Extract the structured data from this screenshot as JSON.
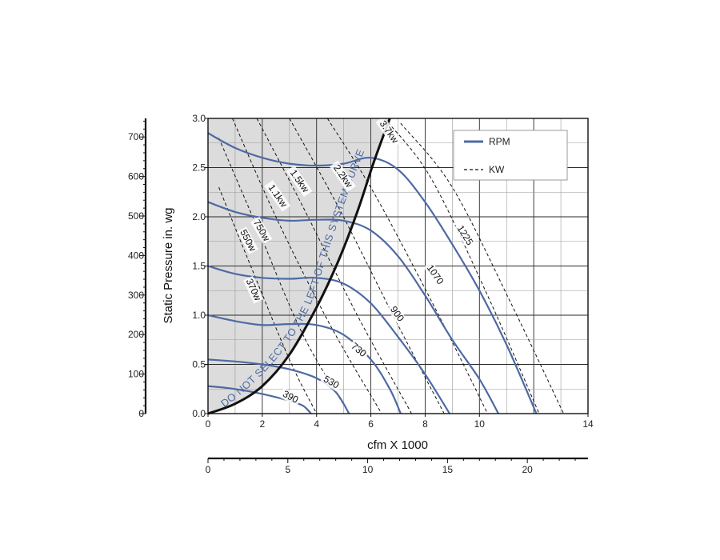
{
  "chart_data": {
    "type": "line",
    "xlabel": "cfm X 1000",
    "ylabel": "Static Pressure in. wg",
    "xlim": [
      0,
      14
    ],
    "ylim": [
      0,
      3.0
    ],
    "x_ticks": [
      "0",
      "2",
      "4",
      "6",
      "8",
      "10",
      "14"
    ],
    "x_tick_values": [
      0,
      2,
      4,
      6,
      8,
      10,
      14
    ],
    "y_ticks": [
      "0.0",
      "0.5",
      "1.0",
      "1.5",
      "2.0",
      "2.5",
      "3.0"
    ],
    "y_tick_values": [
      0,
      0.5,
      1.0,
      1.5,
      2.0,
      2.5,
      3.0
    ],
    "grid": true,
    "secondary_x_axis": {
      "ticks": [
        "0",
        "5",
        "10",
        "15",
        "20"
      ],
      "tick_values": [
        0,
        5,
        10,
        15,
        20
      ],
      "max": 23.8
    },
    "secondary_y_axis": {
      "ticks": [
        "0",
        "100",
        "200",
        "300",
        "400",
        "500",
        "600",
        "700"
      ],
      "tick_values": [
        0,
        100,
        200,
        300,
        400,
        500,
        600,
        700
      ],
      "max": 747
    },
    "legend": {
      "placement": "top-right",
      "entries": [
        {
          "label": "RPM",
          "style": "solid"
        },
        {
          "label": "KW",
          "style": "dashed"
        }
      ]
    },
    "colors": {
      "rpm": "#4e6aa3",
      "kw": "#111111",
      "shade": "#dcdcdc",
      "system_curve": "#111111"
    },
    "system_curve": {
      "label": "DO NOT SELECT TO THE LEFT OF THIS SYSTEM CURVE",
      "points": [
        [
          0,
          0
        ],
        [
          1,
          0.1
        ],
        [
          2,
          0.28
        ],
        [
          3,
          0.6
        ],
        [
          4,
          1.08
        ],
        [
          4.8,
          1.55
        ],
        [
          5.5,
          2.05
        ],
        [
          6.1,
          2.55
        ],
        [
          6.7,
          3.0
        ]
      ]
    },
    "rpm_series": [
      {
        "name": "390",
        "points": [
          [
            0,
            0.28
          ],
          [
            1,
            0.25
          ],
          [
            2,
            0.2
          ],
          [
            3,
            0.13
          ],
          [
            3.5,
            0.08
          ],
          [
            3.8,
            0.0
          ]
        ]
      },
      {
        "name": "530",
        "points": [
          [
            0,
            0.55
          ],
          [
            1,
            0.53
          ],
          [
            2,
            0.5
          ],
          [
            3,
            0.45
          ],
          [
            4,
            0.36
          ],
          [
            4.7,
            0.22
          ],
          [
            5.2,
            0.0
          ]
        ]
      },
      {
        "name": "730",
        "points": [
          [
            0,
            1.0
          ],
          [
            1,
            0.94
          ],
          [
            2,
            0.9
          ],
          [
            3,
            0.91
          ],
          [
            4,
            0.9
          ],
          [
            5,
            0.8
          ],
          [
            6,
            0.55
          ],
          [
            6.7,
            0.25
          ],
          [
            7.1,
            0.0
          ]
        ]
      },
      {
        "name": "900",
        "points": [
          [
            0,
            1.5
          ],
          [
            1,
            1.42
          ],
          [
            2,
            1.38
          ],
          [
            3,
            1.37
          ],
          [
            4,
            1.38
          ],
          [
            5,
            1.32
          ],
          [
            6,
            1.12
          ],
          [
            7,
            0.78
          ],
          [
            8,
            0.4
          ],
          [
            8.9,
            0.0
          ]
        ]
      },
      {
        "name": "1070",
        "points": [
          [
            0,
            2.15
          ],
          [
            1,
            2.05
          ],
          [
            2,
            1.99
          ],
          [
            3,
            1.96
          ],
          [
            4,
            1.97
          ],
          [
            5,
            1.96
          ],
          [
            6,
            1.86
          ],
          [
            7,
            1.6
          ],
          [
            8,
            1.2
          ],
          [
            9,
            0.75
          ],
          [
            10,
            0.35
          ],
          [
            10.7,
            0.0
          ]
        ]
      },
      {
        "name": "1225",
        "points": [
          [
            0,
            2.85
          ],
          [
            1,
            2.7
          ],
          [
            2,
            2.6
          ],
          [
            3,
            2.54
          ],
          [
            4,
            2.52
          ],
          [
            5,
            2.54
          ],
          [
            6,
            2.6
          ],
          [
            7,
            2.48
          ],
          [
            8,
            2.15
          ],
          [
            9,
            1.72
          ],
          [
            10,
            1.25
          ],
          [
            11,
            0.7
          ],
          [
            12.1,
            0.0
          ]
        ]
      }
    ],
    "kw_series": [
      {
        "name": "370w",
        "points": [
          [
            0.4,
            2.3
          ],
          [
            1.5,
            1.55
          ],
          [
            3,
            0.55
          ],
          [
            4,
            0.0
          ]
        ]
      },
      {
        "name": "550w",
        "points": [
          [
            0.4,
            2.8
          ],
          [
            1.8,
            1.9
          ],
          [
            3.5,
            0.8
          ],
          [
            5.2,
            0.0
          ]
        ]
      },
      {
        "name": "750w",
        "points": [
          [
            0.9,
            3.0
          ],
          [
            2.5,
            2.0
          ],
          [
            4.5,
            0.9
          ],
          [
            6.4,
            0.0
          ]
        ]
      },
      {
        "name": "1.1kw",
        "points": [
          [
            1.8,
            3.0
          ],
          [
            3.5,
            2.1
          ],
          [
            5.5,
            1.0
          ],
          [
            7.5,
            0.0
          ]
        ]
      },
      {
        "name": "1.5kw",
        "points": [
          [
            3.0,
            3.0
          ],
          [
            4.8,
            2.1
          ],
          [
            7.0,
            0.9
          ],
          [
            8.7,
            0.0
          ]
        ]
      },
      {
        "name": "2.2kw",
        "points": [
          [
            4.4,
            3.0
          ],
          [
            6.2,
            2.2
          ],
          [
            8.5,
            1.0
          ],
          [
            10.3,
            0.0
          ]
        ]
      },
      {
        "name": "3.7kw",
        "points": [
          [
            6.5,
            3.0
          ],
          [
            8.2,
            2.4
          ],
          [
            10.3,
            1.2
          ],
          [
            12.2,
            0.0
          ]
        ]
      },
      {
        "name": "",
        "points": [
          [
            7.1,
            2.95
          ],
          [
            9.0,
            2.3
          ],
          [
            11.2,
            1.1
          ],
          [
            13.1,
            0.0
          ]
        ]
      }
    ],
    "curve_labels": [
      {
        "text": "390",
        "x": 3.0,
        "y": 0.15,
        "angle": 28
      },
      {
        "text": "530",
        "x": 4.5,
        "y": 0.3,
        "angle": 30
      },
      {
        "text": "730",
        "x": 5.5,
        "y": 0.63,
        "angle": 40
      },
      {
        "text": "900",
        "x": 6.9,
        "y": 1.0,
        "angle": 55
      },
      {
        "text": "1070",
        "x": 8.3,
        "y": 1.4,
        "angle": 55
      },
      {
        "text": "1225",
        "x": 9.4,
        "y": 1.8,
        "angle": 58
      },
      {
        "text": "370w",
        "x": 1.6,
        "y": 1.25,
        "angle": 65
      },
      {
        "text": "550w",
        "x": 1.4,
        "y": 1.75,
        "angle": 62
      },
      {
        "text": "750w",
        "x": 1.9,
        "y": 1.85,
        "angle": 60
      },
      {
        "text": "1.1kw",
        "x": 2.5,
        "y": 2.2,
        "angle": 55
      },
      {
        "text": "1.5kw",
        "x": 3.3,
        "y": 2.35,
        "angle": 55
      },
      {
        "text": "2.2kw",
        "x": 4.9,
        "y": 2.4,
        "angle": 55
      },
      {
        "text": "3.7kw",
        "x": 6.6,
        "y": 2.85,
        "angle": 55
      }
    ]
  }
}
